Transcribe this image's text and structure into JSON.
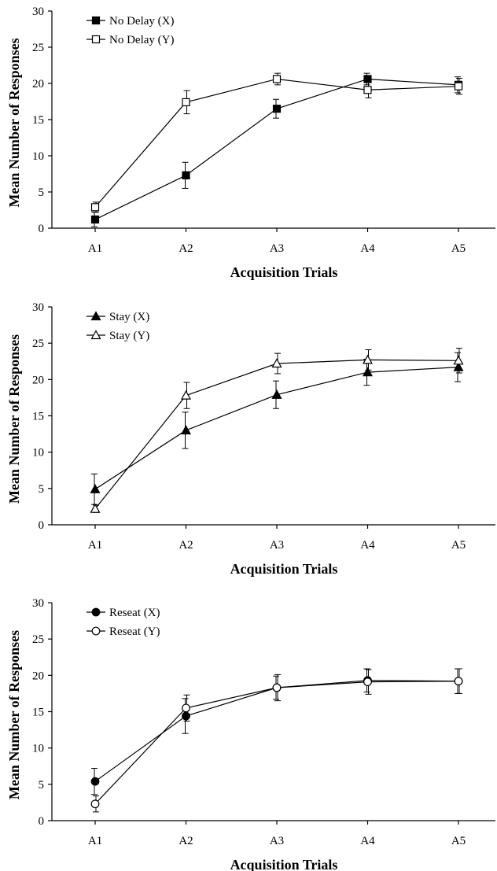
{
  "chart_data": [
    {
      "type": "line",
      "title": "",
      "xlabel": "Acquisition Trials",
      "ylabel": "Mean Number of Responses",
      "categories": [
        "A1",
        "A2",
        "A3",
        "A4",
        "A5"
      ],
      "ylim": [
        0,
        30
      ],
      "yticks": [
        0,
        5,
        10,
        15,
        20,
        25,
        30
      ],
      "grid": false,
      "legend_position": "top-left",
      "series": [
        {
          "name": "No Delay (X)",
          "marker": "square-filled",
          "values": [
            1.2,
            7.3,
            16.5,
            20.6,
            19.8
          ],
          "errors": [
            1.0,
            1.8,
            1.3,
            0.8,
            1.1
          ]
        },
        {
          "name": "No Delay (Y)",
          "marker": "square-open",
          "values": [
            2.9,
            17.4,
            20.6,
            19.1,
            19.6
          ],
          "errors": [
            0.7,
            1.6,
            0.8,
            1.1,
            1.1
          ]
        }
      ]
    },
    {
      "type": "line",
      "title": "",
      "xlabel": "Acquisition Trials",
      "ylabel": "Mean Number of Responses",
      "categories": [
        "A1",
        "A2",
        "A3",
        "A4",
        "A5"
      ],
      "ylim": [
        0,
        30
      ],
      "yticks": [
        0,
        5,
        10,
        15,
        20,
        25,
        30
      ],
      "grid": false,
      "legend_position": "top-left",
      "series": [
        {
          "name": "Stay (X)",
          "marker": "triangle-filled",
          "values": [
            4.9,
            13.0,
            17.9,
            21.0,
            21.7
          ],
          "errors": [
            2.1,
            2.5,
            1.9,
            1.8,
            2.0
          ]
        },
        {
          "name": "Stay (Y)",
          "marker": "triangle-open",
          "values": [
            2.2,
            17.8,
            22.2,
            22.7,
            22.6
          ],
          "errors": [
            0.5,
            1.8,
            1.4,
            1.4,
            1.7
          ]
        }
      ]
    },
    {
      "type": "line",
      "title": "",
      "xlabel": "Acquisition Trials",
      "ylabel": "Mean Number of Responses",
      "categories": [
        "A1",
        "A2",
        "A3",
        "A4",
        "A5"
      ],
      "ylim": [
        0,
        30
      ],
      "yticks": [
        0,
        5,
        10,
        15,
        20,
        25,
        30
      ],
      "grid": false,
      "legend_position": "top-left",
      "series": [
        {
          "name": "Reseat (X)",
          "marker": "circle-filled",
          "values": [
            5.4,
            14.4,
            18.3,
            19.3,
            19.2
          ],
          "errors": [
            1.8,
            2.4,
            1.6,
            1.6,
            1.7
          ]
        },
        {
          "name": "Reseat (Y)",
          "marker": "circle-open",
          "values": [
            2.3,
            15.5,
            18.3,
            19.1,
            19.2
          ],
          "errors": [
            1.1,
            1.8,
            1.8,
            1.7,
            1.7
          ]
        }
      ]
    }
  ]
}
